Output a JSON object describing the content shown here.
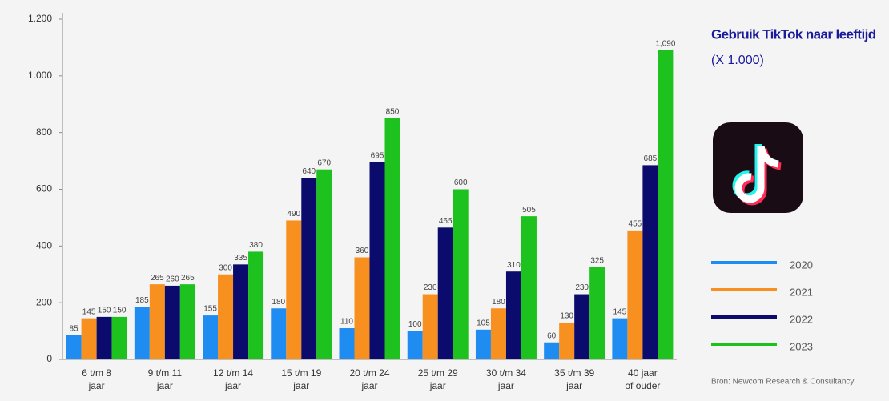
{
  "chart_data": {
    "type": "bar",
    "title": "Gebruik TikTok naar leeftijd",
    "subtitle": "(X 1.000)",
    "source": "Bron: Newcom Research & Consultancy",
    "categories": [
      "6 t/m 8\njaar",
      "9 t/m 11\njaar",
      "12 t/m 14\njaar",
      "15 t/m 19\njaar",
      "20 t/m 24\njaar",
      "25 t/m 29\njaar",
      "30 t/m 34\njaar",
      "35 t/m 39\njaar",
      "40 jaar\nof ouder"
    ],
    "series": [
      {
        "name": "2020",
        "color": "#1e8cf0",
        "values": [
          85,
          185,
          155,
          180,
          110,
          100,
          105,
          60,
          145
        ]
      },
      {
        "name": "2021",
        "color": "#f7901e",
        "values": [
          145,
          265,
          300,
          490,
          360,
          230,
          180,
          130,
          455
        ]
      },
      {
        "name": "2022",
        "color": "#0b0b6e",
        "values": [
          150,
          260,
          335,
          640,
          695,
          465,
          310,
          230,
          685
        ]
      },
      {
        "name": "2023",
        "color": "#1ec21e",
        "values": [
          150,
          265,
          380,
          670,
          850,
          600,
          505,
          325,
          1090
        ],
        "value_labels": [
          "150",
          "265",
          "380",
          "670",
          "850",
          "600",
          "505",
          "325",
          "1,090"
        ]
      }
    ],
    "ylim": [
      0,
      1200
    ],
    "yticks": [
      0,
      200,
      400,
      600,
      800,
      {
        "value": 1000,
        "label": "1.000"
      },
      {
        "value": 1200,
        "label": "1.200"
      }
    ],
    "grid": false,
    "legend": "right"
  }
}
